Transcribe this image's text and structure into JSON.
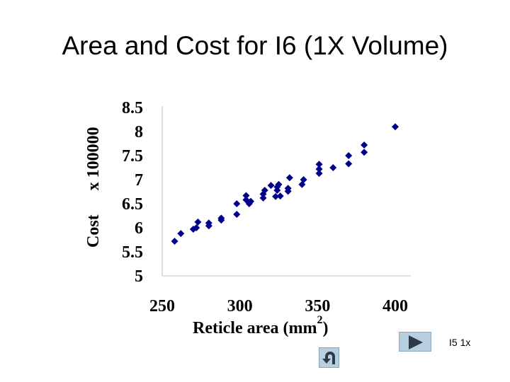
{
  "slide": {
    "title": "Area and Cost for I6 (1X Volume)"
  },
  "chart_data": {
    "type": "scatter",
    "title": "",
    "xlabel": "Reticle area (mm",
    "xlabel_superscript": "2",
    "xlabel_suffix": ")",
    "ylabel_main": "Cost",
    "ylabel_scale": "x 100000",
    "xlim": [
      250,
      400
    ],
    "ylim": [
      5,
      8.5
    ],
    "x_ticks": [
      250,
      300,
      350,
      400
    ],
    "y_ticks": [
      5,
      5.5,
      6,
      6.5,
      7,
      7.5,
      8,
      8.5
    ],
    "x_tick_labels": [
      "250",
      "300",
      "350",
      "400"
    ],
    "y_tick_labels": [
      "5",
      "5.5",
      "6",
      "6.5",
      "7",
      "7.5",
      "8",
      "8.5"
    ],
    "grid": false,
    "marker": "diamond",
    "marker_color": "#00008B",
    "points": [
      {
        "x": 258,
        "y": 5.72
      },
      {
        "x": 262,
        "y": 5.88
      },
      {
        "x": 270,
        "y": 5.97
      },
      {
        "x": 272,
        "y": 6.0
      },
      {
        "x": 273,
        "y": 6.12
      },
      {
        "x": 280,
        "y": 6.04
      },
      {
        "x": 280,
        "y": 6.1
      },
      {
        "x": 288,
        "y": 6.16
      },
      {
        "x": 288,
        "y": 6.2
      },
      {
        "x": 298,
        "y": 6.28
      },
      {
        "x": 298,
        "y": 6.5
      },
      {
        "x": 304,
        "y": 6.58
      },
      {
        "x": 304,
        "y": 6.67
      },
      {
        "x": 306,
        "y": 6.5
      },
      {
        "x": 307,
        "y": 6.55
      },
      {
        "x": 315,
        "y": 6.62
      },
      {
        "x": 315,
        "y": 6.7
      },
      {
        "x": 316,
        "y": 6.78
      },
      {
        "x": 320,
        "y": 6.88
      },
      {
        "x": 323,
        "y": 6.65
      },
      {
        "x": 324,
        "y": 6.78
      },
      {
        "x": 324,
        "y": 6.85
      },
      {
        "x": 325,
        "y": 6.9
      },
      {
        "x": 326,
        "y": 6.66
      },
      {
        "x": 331,
        "y": 6.76
      },
      {
        "x": 331,
        "y": 6.82
      },
      {
        "x": 332,
        "y": 7.04
      },
      {
        "x": 340,
        "y": 6.9
      },
      {
        "x": 341,
        "y": 7.0
      },
      {
        "x": 351,
        "y": 7.13
      },
      {
        "x": 351,
        "y": 7.22
      },
      {
        "x": 351,
        "y": 7.32
      },
      {
        "x": 360,
        "y": 7.25
      },
      {
        "x": 370,
        "y": 7.33
      },
      {
        "x": 370,
        "y": 7.5
      },
      {
        "x": 380,
        "y": 7.57
      },
      {
        "x": 380,
        "y": 7.72
      },
      {
        "x": 400,
        "y": 8.1
      }
    ]
  },
  "navigation": {
    "next_icon": "play-arrow-icon",
    "link_label": "I5 1x",
    "return_icon": "u-turn-return-icon"
  },
  "colors": {
    "marker": "#00008B",
    "button_fill": "#b8cfe0",
    "button_border": "#8aa6bd"
  }
}
